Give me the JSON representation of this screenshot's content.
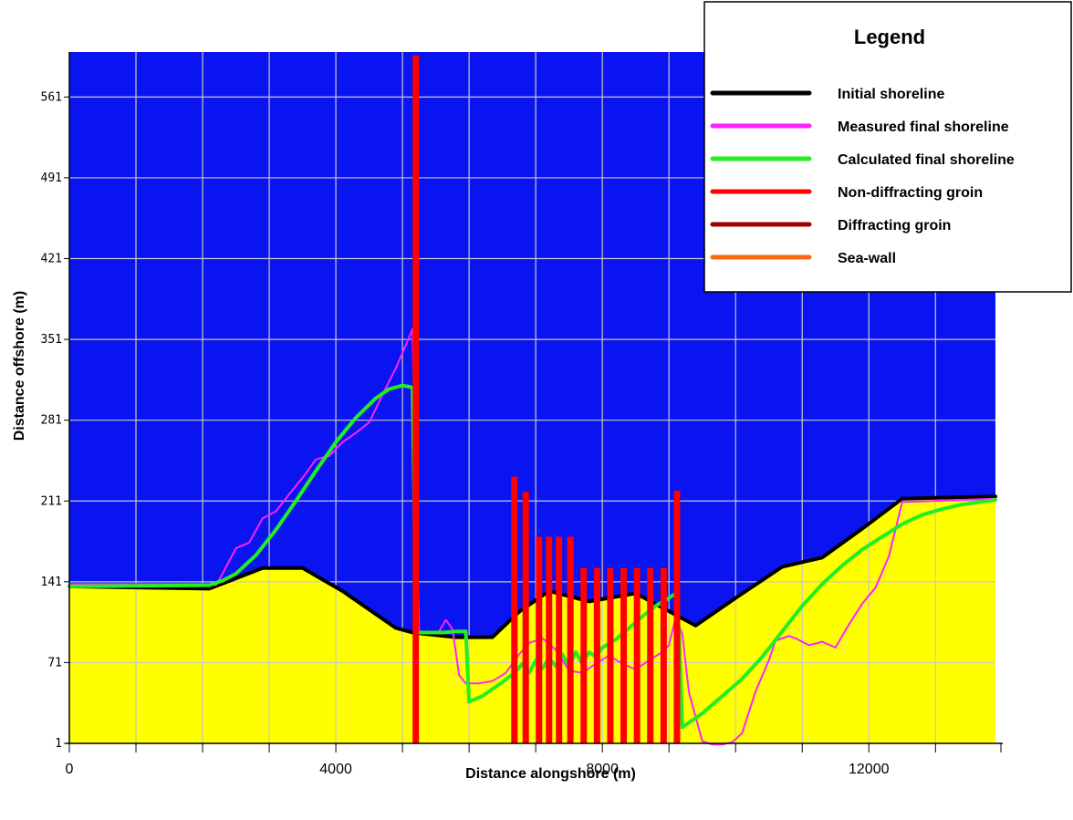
{
  "chart_data": {
    "type": "line",
    "xlabel": "Distance alongshore (m)",
    "ylabel": "Distance offshore (m)",
    "xlim": [
      0,
      13900
    ],
    "ylim": [
      1,
      600
    ],
    "x_ticks": [
      0,
      4000,
      8000,
      12000
    ],
    "y_ticks": [
      1,
      71,
      141,
      211,
      281,
      351,
      421,
      491,
      561
    ],
    "grid": true,
    "legend": {
      "title": "Legend",
      "placement": "top-right"
    },
    "colors": {
      "water": "#0a14f0",
      "land": "#ffff00",
      "grid": "#c8c8c8"
    },
    "series": [
      {
        "name": "Initial shoreline",
        "color": "#000000",
        "x": [
          0,
          2100,
          2900,
          3500,
          4100,
          4900,
          5150,
          5800,
          6350,
          6750,
          7200,
          7800,
          8500,
          9400,
          10000,
          10700,
          11300,
          11900,
          12500,
          13900
        ],
        "y": [
          137,
          135,
          153,
          153,
          133,
          101,
          97,
          93,
          93,
          115,
          133,
          124,
          131,
          103,
          127,
          154,
          162,
          187,
          213,
          215
        ]
      },
      {
        "name": "Measured final shoreline",
        "color": "#ff22ff",
        "x": [
          0,
          2100,
          2200,
          2300,
          2500,
          2700,
          2900,
          3100,
          3300,
          3500,
          3700,
          3900,
          4100,
          4300,
          4500,
          4700,
          4900,
          5050,
          5150,
          5250,
          5400,
          5550,
          5650,
          5750,
          5850,
          5950,
          6150,
          6350,
          6550,
          6750,
          6900,
          7100,
          7300,
          7500,
          7700,
          7900,
          8100,
          8300,
          8500,
          8700,
          8900,
          9000,
          9100,
          9200,
          9300,
          9500,
          9650,
          9800,
          9950,
          10100,
          10300,
          10500,
          10600,
          10700,
          10800,
          10900,
          11100,
          11300,
          11500,
          11700,
          11900,
          12100,
          12300,
          12500,
          13900
        ],
        "y": [
          139,
          139,
          138,
          148,
          170,
          175,
          196,
          202,
          217,
          231,
          247,
          250,
          262,
          270,
          279,
          303,
          326,
          346,
          360,
          97,
          97,
          98,
          108,
          100,
          60,
          53,
          53,
          55,
          62,
          78,
          88,
          92,
          82,
          64,
          62,
          70,
          77,
          70,
          65,
          73,
          80,
          86,
          110,
          96,
          45,
          3,
          0,
          0,
          2,
          10,
          46,
          73,
          90,
          92,
          94,
          92,
          86,
          89,
          84,
          104,
          122,
          136,
          163,
          210,
          213
        ]
      },
      {
        "name": "Calculated final shoreline",
        "color": "#22ee22",
        "x": [
          0,
          2100,
          2300,
          2500,
          2800,
          3100,
          3400,
          3700,
          4000,
          4300,
          4600,
          4800,
          5000,
          5100,
          5150,
          5180,
          5200,
          5600,
          5800,
          5950,
          6000,
          6200,
          6500,
          6700,
          6800,
          6900,
          7000,
          7100,
          7200,
          7300,
          7400,
          7500,
          7600,
          7700,
          7800,
          7900,
          8000,
          8200,
          8400,
          8600,
          8800,
          9000,
          9100,
          9150,
          9200,
          9500,
          9800,
          10100,
          10400,
          10700,
          11000,
          11300,
          11600,
          11900,
          12200,
          12500,
          12800,
          13100,
          13400,
          13900
        ],
        "y": [
          137,
          138,
          142,
          148,
          164,
          186,
          211,
          237,
          262,
          283,
          300,
          308,
          311,
          310,
          309,
          200,
          97,
          97,
          98,
          98,
          37,
          42,
          54,
          63,
          70,
          62,
          73,
          66,
          75,
          68,
          78,
          68,
          80,
          70,
          80,
          76,
          84,
          91,
          101,
          111,
          120,
          127,
          131,
          100,
          15,
          27,
          42,
          57,
          76,
          98,
          120,
          139,
          155,
          169,
          180,
          191,
          199,
          204,
          208,
          212
        ]
      }
    ],
    "non_diffracting_groins": [
      {
        "x": 5200,
        "y": 597
      },
      {
        "x": 6680,
        "y": 232
      },
      {
        "x": 6850,
        "y": 219
      },
      {
        "x": 7050,
        "y": 180
      },
      {
        "x": 7200,
        "y": 180
      },
      {
        "x": 7350,
        "y": 180
      },
      {
        "x": 7520,
        "y": 180
      },
      {
        "x": 7720,
        "y": 153
      },
      {
        "x": 7920,
        "y": 153
      },
      {
        "x": 8120,
        "y": 153
      },
      {
        "x": 8320,
        "y": 153
      },
      {
        "x": 8520,
        "y": 153
      },
      {
        "x": 8720,
        "y": 153
      },
      {
        "x": 8920,
        "y": 153
      },
      {
        "x": 9120,
        "y": 220
      }
    ],
    "legend_entries": [
      {
        "label": "Initial shoreline",
        "color": "#000000"
      },
      {
        "label": "Measured final shoreline",
        "color": "#ff22ff"
      },
      {
        "label": "Calculated final shoreline",
        "color": "#22ee22"
      },
      {
        "label": "Non-diffracting groin",
        "color": "#ff0000"
      },
      {
        "label": "Diffracting groin",
        "color": "#a00000"
      },
      {
        "label": "Sea-wall",
        "color": "#ff6a10"
      }
    ]
  }
}
